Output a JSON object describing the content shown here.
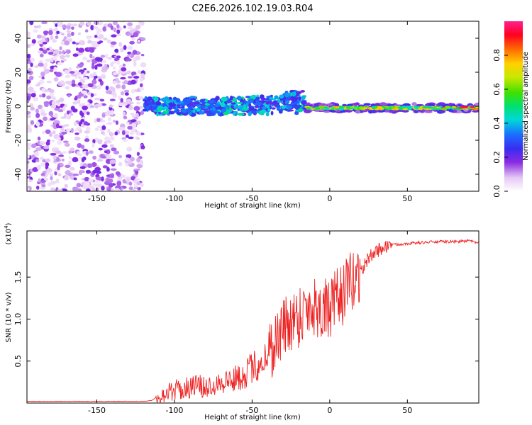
{
  "title": "C2E6.2026.102.19.03.R04",
  "chart_data": [
    {
      "type": "heatmap",
      "name": "spectrogram",
      "title": "C2E6.2026.102.19.03.R04",
      "xlabel": "Height of straight line (km)",
      "ylabel": "Frequency (Hz)",
      "xlim": [
        -195,
        96
      ],
      "ylim": [
        -50,
        50
      ],
      "x_ticks": [
        -150,
        -100,
        -50,
        0,
        50
      ],
      "y_ticks": [
        -40,
        -20,
        0,
        20,
        40
      ],
      "colorbar": {
        "label": "Normalized spectral amplitude",
        "range": [
          0.0,
          1.0
        ],
        "ticks": [
          0.0,
          0.2,
          0.4,
          0.6,
          0.8
        ],
        "tick_labels": [
          "0.0",
          "0.2",
          "0.4",
          "0.6",
          "0.8"
        ]
      },
      "regions": [
        {
          "x_range": [
            -195,
            -120
          ],
          "description_level": "noise",
          "amplitude_range": [
            0.05,
            0.2
          ],
          "freq_range": [
            -50,
            50
          ]
        },
        {
          "x_range": [
            -120,
            -15
          ],
          "amplitude_range": [
            0.2,
            0.5
          ],
          "freq_center": 0,
          "freq_spread": 5
        },
        {
          "x_range": [
            -15,
            96
          ],
          "amplitude_range": [
            0.4,
            0.95
          ],
          "freq_center": -1,
          "freq_spread": 1.5
        }
      ]
    },
    {
      "type": "line",
      "name": "snr",
      "xlabel": "Height of straight line (km)",
      "ylabel": "SNR (10 * v/v)",
      "scale_label": "(x10",
      "scale_exponent": "4",
      "xlim": [
        -195,
        96
      ],
      "ylim": [
        0,
        2.05
      ],
      "x_ticks": [
        -150,
        -100,
        -50,
        0,
        50
      ],
      "y_ticks": [
        0.5,
        1.0,
        1.5
      ],
      "y_tick_labels": [
        "0.5",
        "1.0",
        "1.5"
      ],
      "color": "#ee2222",
      "series": [
        {
          "name": "SNR",
          "x": [
            -195,
            -180,
            -160,
            -140,
            -120,
            -115,
            -110,
            -105,
            -100,
            -95,
            -90,
            -85,
            -80,
            -75,
            -70,
            -65,
            -60,
            -55,
            -50,
            -45,
            -40,
            -35,
            -30,
            -25,
            -20,
            -15,
            -10,
            -5,
            0,
            5,
            10,
            15,
            20,
            25,
            30,
            35,
            40,
            50,
            60,
            70,
            80,
            90,
            96
          ],
          "values": [
            0.02,
            0.02,
            0.02,
            0.02,
            0.02,
            0.03,
            0.08,
            0.1,
            0.15,
            0.14,
            0.18,
            0.2,
            0.16,
            0.22,
            0.24,
            0.25,
            0.28,
            0.32,
            0.4,
            0.45,
            0.55,
            0.7,
            0.85,
            0.95,
            1.0,
            1.1,
            1.12,
            1.1,
            1.05,
            1.2,
            1.3,
            1.42,
            1.55,
            1.72,
            1.8,
            1.85,
            1.88,
            1.9,
            1.91,
            1.92,
            1.92,
            1.93,
            1.9
          ]
        }
      ]
    }
  ]
}
